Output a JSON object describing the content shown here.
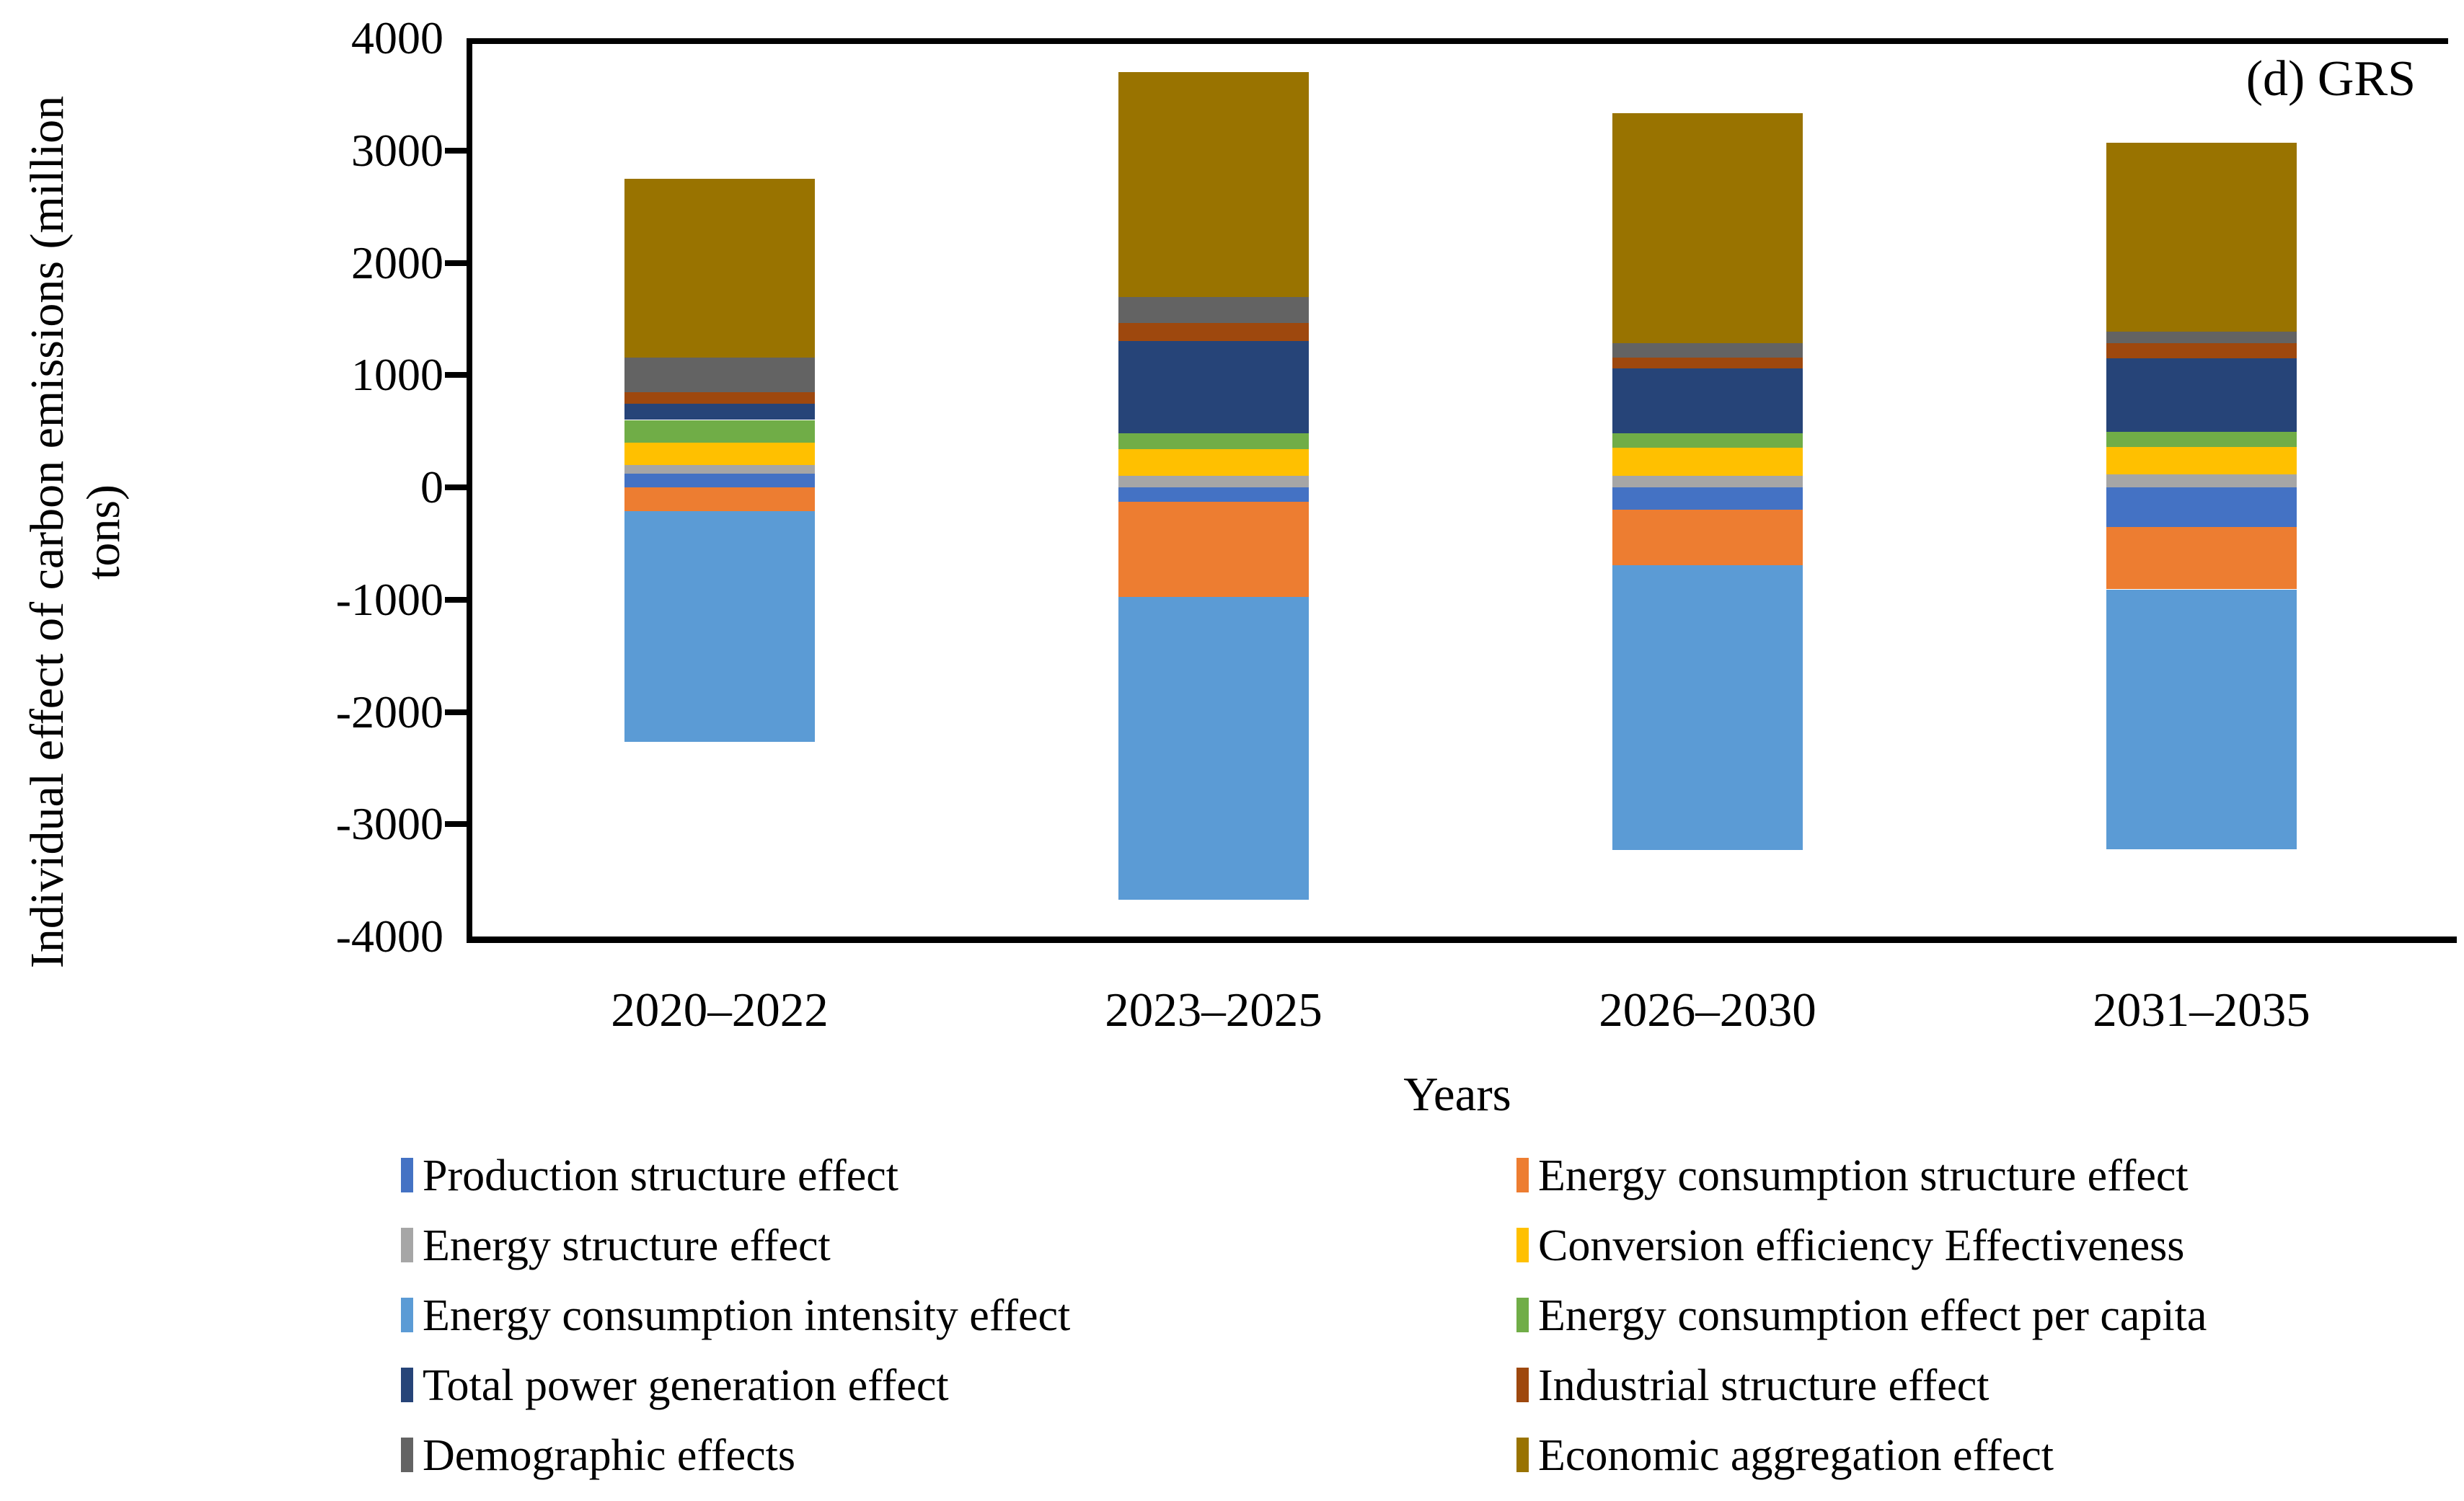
{
  "figure": {
    "annotation": "(d) GRS",
    "x_title": "Years",
    "y_title_line1": "Individual effect of carbon emissions (million",
    "y_title_line2": "tons)"
  },
  "chart_data": {
    "type": "bar",
    "stacked": true,
    "title": "",
    "xlabel": "Years",
    "ylabel": "Individual effect of carbon emissions (million tons)",
    "ylim": [
      -4000,
      4000
    ],
    "ytick_step": 1000,
    "grid": false,
    "legend_position": "bottom-two-columns",
    "categories": [
      "2020–2022",
      "2023–2025",
      "2026–2030",
      "2031–2035"
    ],
    "series": [
      {
        "name": "Production structure effect",
        "color": "#4472C4",
        "values": [
          125,
          -130,
          -200,
          -355
        ]
      },
      {
        "name": "Energy consumption structure effect",
        "color": "#ED7D31",
        "values": [
          -210,
          -845,
          -495,
          -555
        ]
      },
      {
        "name": "Energy structure effect",
        "color": "#A6A6A6",
        "values": [
          75,
          105,
          100,
          115
        ]
      },
      {
        "name": "Conversion efficiency Effectiveness",
        "color": "#FFC000",
        "values": [
          200,
          235,
          250,
          245
        ]
      },
      {
        "name": "Energy consumption intensity effect",
        "color": "#5B9BD5",
        "values": [
          -2055,
          -2695,
          -2535,
          -2310
        ]
      },
      {
        "name": "Energy consumption effect per capita",
        "color": "#70AD47",
        "values": [
          200,
          140,
          135,
          135
        ]
      },
      {
        "name": "Total power generation effect",
        "color": "#264478",
        "values": [
          150,
          825,
          575,
          655
        ]
      },
      {
        "name": "Industrial structure effect",
        "color": "#9E480E",
        "values": [
          100,
          160,
          95,
          135
        ]
      },
      {
        "name": "Demographic effects",
        "color": "#636363",
        "values": [
          305,
          235,
          135,
          100
        ]
      },
      {
        "name": "Economic aggregation effect",
        "color": "#997300",
        "values": [
          1590,
          2000,
          2045,
          1685
        ]
      }
    ]
  },
  "legend": {
    "left_column_series": [
      0,
      2,
      4,
      6,
      8
    ],
    "right_column_series": [
      1,
      3,
      5,
      7,
      9
    ]
  },
  "y_tick_labels": [
    "4000",
    "3000",
    "2000",
    "1000",
    "0",
    "-1000",
    "-2000",
    "-3000",
    "-4000"
  ]
}
